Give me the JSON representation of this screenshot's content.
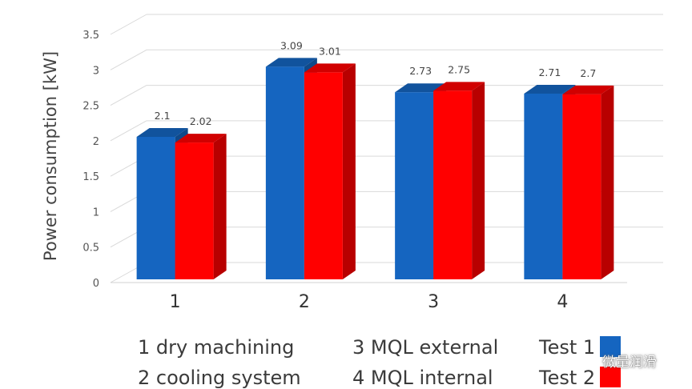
{
  "chart_data": {
    "type": "bar",
    "categories": [
      "1",
      "2",
      "3",
      "4"
    ],
    "series": [
      {
        "name": "Test 1",
        "values": [
          2.1,
          3.09,
          2.73,
          2.71
        ],
        "color": "#1565c0"
      },
      {
        "name": "Test 2",
        "values": [
          2.02,
          3.01,
          2.75,
          2.7
        ],
        "color": "#ff0000"
      }
    ],
    "data_labels": [
      [
        "2.1",
        "3.09",
        "2.73",
        "2.71"
      ],
      [
        "2.02",
        "3.01",
        "2.75",
        "2.7"
      ]
    ],
    "ylabel": "Power consumption [kW]",
    "xlabel": "",
    "ylim": [
      0,
      3.5
    ],
    "yticks": [
      "0",
      "0.5",
      "1",
      "1.5",
      "2",
      "2.5",
      "3",
      "3.5"
    ],
    "grid": true,
    "style": "3d-column"
  },
  "legend": {
    "categories": [
      "1 dry machining",
      "2 cooling system",
      "3 MQL external",
      "4 MQL internal"
    ],
    "series": [
      "Test 1",
      "Test 2"
    ]
  },
  "watermark": {
    "text": "微量润滑",
    "icon": "wechat-icon"
  }
}
